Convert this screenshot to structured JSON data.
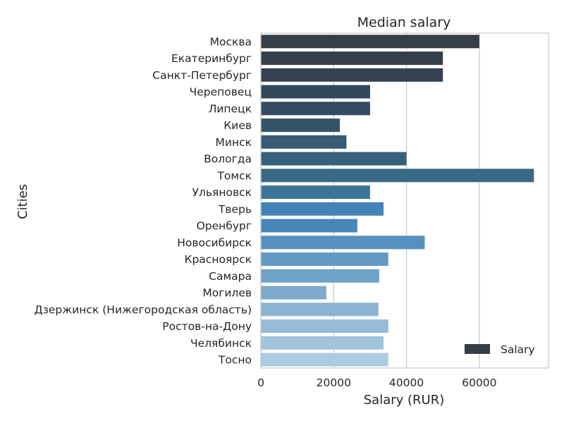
{
  "chart_data": {
    "type": "bar",
    "orientation": "horizontal",
    "title": "Median salary",
    "xlabel": "Salary (RUR)",
    "ylabel": "Cities",
    "xlim": [
      0,
      79000
    ],
    "xticks": [
      0,
      20000,
      40000,
      60000
    ],
    "grid": true,
    "legend": {
      "entries": [
        "Salary"
      ],
      "placement": "bottom-right"
    },
    "categories": [
      "Москва",
      "Екатеринбург",
      "Санкт-Петербург",
      "Череповец",
      "Липецк",
      "Киев",
      "Минск",
      "Вологда",
      "Томск",
      "Ульяновск",
      "Тверь",
      "Оренбург",
      "Новосибирск",
      "Красноярск",
      "Самара",
      "Могилев",
      "Дзержинск (Нижегородская область)",
      "Ростов-на-Дону",
      "Челябинск",
      "Тосно"
    ],
    "series": [
      {
        "name": "Salary",
        "values": [
          60000,
          50000,
          50000,
          30000,
          30000,
          21700,
          23500,
          40000,
          75000,
          30000,
          33700,
          26500,
          45000,
          35000,
          32500,
          18000,
          32300,
          35000,
          33700,
          35000
        ]
      }
    ],
    "colors": [
      "#353d45",
      "#343f4b",
      "#344253",
      "#33475a",
      "#334c62",
      "#355369",
      "#365b73",
      "#36617c",
      "#386a87",
      "#3b7698",
      "#4382b7",
      "#4987bb",
      "#5590bf",
      "#629ac4",
      "#6fa3c9",
      "#7dabcd",
      "#89b3d1",
      "#96bcd6",
      "#a1c4db",
      "#abcbe0"
    ],
    "legend_swatch_color": "#353d45",
    "grid_color": "#cccccc"
  }
}
